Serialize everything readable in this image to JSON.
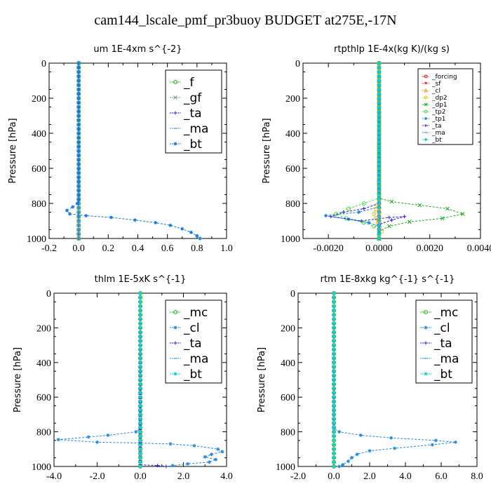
{
  "title": "cam144_lscale_pmf_pr3buoy  BUDGET at275E,-17N",
  "chart_data": [
    {
      "type": "line",
      "title": "um   1E-4xm s^{-2}",
      "ylabel": "Pressure [hPa]",
      "xlim": [
        -0.2,
        1.0
      ],
      "ylim": [
        1000,
        0
      ],
      "xticks": [
        "-0.2",
        "0.0",
        "0.2",
        "0.4",
        "0.6",
        "0.8",
        "1.0"
      ],
      "xtick_values": [
        -0.2,
        0.0,
        0.2,
        0.4,
        0.6,
        0.8,
        1.0
      ],
      "yticks": [
        "0",
        "200",
        "400",
        "600",
        "800",
        "1000"
      ],
      "ytick_values": [
        0,
        200,
        400,
        600,
        800,
        1000
      ],
      "legend_position": "top-right",
      "legend_size": "large",
      "series": [
        {
          "name": "_f",
          "color": "#22c022",
          "marker": "o",
          "values": [
            [
              0,
              0
            ],
            [
              0,
              1000
            ]
          ]
        },
        {
          "name": "_gf",
          "color": "#6aa0a8",
          "marker": "x",
          "values": [
            [
              0,
              0
            ],
            [
              0,
              1000
            ]
          ]
        },
        {
          "name": "_ta",
          "color": "#2222cc",
          "marker": "+",
          "values": [
            [
              0,
              0
            ],
            [
              0,
              1000
            ]
          ]
        },
        {
          "name": "_ma",
          "color": "#3399cc",
          "marker": "-",
          "values": [
            [
              0,
              0
            ],
            [
              0,
              1000
            ]
          ]
        },
        {
          "name": "_bt",
          "color": "#1177dd",
          "marker": "*",
          "values": [
            [
              0,
              0
            ],
            [
              0,
              780
            ],
            [
              -0.01,
              800
            ],
            [
              -0.04,
              820
            ],
            [
              -0.08,
              840
            ],
            [
              -0.06,
              860
            ],
            [
              0.05,
              870
            ],
            [
              0.22,
              880
            ],
            [
              0.38,
              895
            ],
            [
              0.52,
              910
            ],
            [
              0.62,
              925
            ],
            [
              0.7,
              945
            ],
            [
              0.76,
              965
            ],
            [
              0.8,
              985
            ],
            [
              0.82,
              1000
            ]
          ]
        }
      ]
    },
    {
      "type": "line",
      "title": "rtpthlp   1E-4x(kg K)/(kg s)",
      "ylabel": "Pressure [hPa]",
      "xlim": [
        -0.003,
        0.004
      ],
      "ylim": [
        1000,
        0
      ],
      "xticks": [
        "-0.0020",
        "0.0000",
        "0.0020",
        "0.0040"
      ],
      "xtick_values": [
        -0.002,
        0.0,
        0.002,
        0.004
      ],
      "yticks": [
        "0",
        "200",
        "400",
        "600",
        "800",
        "1000"
      ],
      "ytick_values": [
        0,
        200,
        400,
        600,
        800,
        1000
      ],
      "legend_position": "top-right",
      "legend_size": "small",
      "series": [
        {
          "name": "_forcing",
          "color": "#dd2222",
          "marker": "o",
          "values": [
            [
              0,
              0
            ],
            [
              0,
              1000
            ]
          ]
        },
        {
          "name": "_sf",
          "color": "#ee3333",
          "marker": "v",
          "values": [
            [
              0,
              0
            ],
            [
              0,
              1000
            ]
          ]
        },
        {
          "name": "_cl",
          "color": "#e8a020",
          "marker": "^",
          "values": [
            [
              0,
              0
            ],
            [
              0,
              1000
            ]
          ]
        },
        {
          "name": "_dp2",
          "color": "#e8c020",
          "marker": "o",
          "values": [
            [
              0,
              0
            ],
            [
              0,
              780
            ],
            [
              -0.0002,
              860
            ],
            [
              0.0001,
              960
            ],
            [
              0,
              1000
            ]
          ]
        },
        {
          "name": "_dp1",
          "color": "#22aa22",
          "marker": "x",
          "values": [
            [
              0,
              0
            ],
            [
              0,
              770
            ],
            [
              0.0005,
              790
            ],
            [
              0.0016,
              810
            ],
            [
              0.0027,
              830
            ],
            [
              0.0033,
              860
            ],
            [
              0.0025,
              885
            ],
            [
              0.0012,
              905
            ],
            [
              0.0004,
              930
            ],
            [
              0,
              960
            ],
            [
              0,
              1000
            ]
          ]
        },
        {
          "name": "_tp2",
          "color": "#44dd44",
          "marker": "o",
          "values": [
            [
              0,
              0
            ],
            [
              0,
              770
            ],
            [
              -0.0006,
              800
            ],
            [
              -0.0012,
              830
            ],
            [
              -0.0017,
              860
            ],
            [
              -0.0013,
              885
            ],
            [
              -0.0006,
              910
            ],
            [
              -0.0002,
              930
            ],
            [
              0,
              950
            ],
            [
              0,
              1000
            ]
          ]
        },
        {
          "name": "_tp1",
          "color": "#2288dd",
          "marker": "*",
          "values": [
            [
              0,
              0
            ],
            [
              0,
              820
            ],
            [
              -0.0008,
              850
            ],
            [
              -0.0021,
              870
            ],
            [
              -0.0012,
              890
            ],
            [
              -0.0004,
              910
            ],
            [
              0,
              930
            ],
            [
              0,
              1000
            ]
          ]
        },
        {
          "name": "_ta",
          "color": "#2222cc",
          "marker": "+",
          "values": [
            [
              0,
              0
            ],
            [
              0,
              800
            ],
            [
              -0.0006,
              830
            ],
            [
              -0.0014,
              850
            ],
            [
              -0.0019,
              875
            ],
            [
              -0.0007,
              900
            ],
            [
              0.0004,
              880
            ],
            [
              0.001,
              875
            ],
            [
              0.0005,
              895
            ],
            [
              0,
              920
            ],
            [
              0,
              1000
            ]
          ]
        },
        {
          "name": "_ma",
          "color": "#3399cc",
          "marker": "-",
          "values": [
            [
              0,
              0
            ],
            [
              0,
              1000
            ]
          ]
        },
        {
          "name": "_bt",
          "color": "#11cccc",
          "marker": "*",
          "values": [
            [
              0,
              0
            ],
            [
              0,
              1000
            ]
          ]
        }
      ]
    },
    {
      "type": "line",
      "title": "thlm   1E-5xK s^{-1}",
      "ylabel": "Pressure [hPa]",
      "xlim": [
        -4.0,
        4.0
      ],
      "ylim": [
        1000,
        0
      ],
      "xticks": [
        "-4.0",
        "-2.0",
        "0.0",
        "2.0",
        "4.0"
      ],
      "xtick_values": [
        -4.0,
        -2.0,
        0.0,
        2.0,
        4.0
      ],
      "yticks": [
        "0",
        "200",
        "400",
        "600",
        "800",
        "1000"
      ],
      "ytick_values": [
        0,
        200,
        400,
        600,
        800,
        1000
      ],
      "legend_position": "top-right",
      "legend_size": "large",
      "series": [
        {
          "name": "_mc",
          "color": "#22c022",
          "marker": "o",
          "values": [
            [
              0,
              0
            ],
            [
              0,
              1000
            ]
          ]
        },
        {
          "name": "_cl",
          "color": "#2288dd",
          "marker": "*",
          "values": [
            [
              0,
              0
            ],
            [
              0,
              780
            ],
            [
              -0.2,
              800
            ],
            [
              -1.5,
              820
            ],
            [
              -2.4,
              830
            ],
            [
              -3.8,
              845
            ],
            [
              -2.0,
              860
            ],
            [
              0,
              865
            ],
            [
              1.4,
              870
            ],
            [
              2.5,
              880
            ],
            [
              3.6,
              900
            ],
            [
              3.8,
              915
            ],
            [
              3.3,
              930
            ],
            [
              3.0,
              945
            ],
            [
              3.5,
              960
            ],
            [
              3.2,
              975
            ],
            [
              2.2,
              985
            ],
            [
              1.5,
              995
            ]
          ]
        },
        {
          "name": "_ta",
          "color": "#2222cc",
          "marker": "+",
          "values": [
            [
              0,
              0
            ],
            [
              0,
              990
            ],
            [
              0.8,
              995
            ],
            [
              1.2,
              1000
            ]
          ]
        },
        {
          "name": "_ma",
          "color": "#3399cc",
          "marker": "-",
          "values": [
            [
              0,
              0
            ],
            [
              0,
              1000
            ]
          ]
        },
        {
          "name": "_bt",
          "color": "#11cccc",
          "marker": "*",
          "values": [
            [
              0,
              0
            ],
            [
              0,
              1000
            ]
          ]
        }
      ]
    },
    {
      "type": "line",
      "title": "rtm   1E-8xkg kg^{-1} s^{-1}",
      "ylabel": "Pressure [hPa]",
      "xlim": [
        -2.0,
        8.0
      ],
      "ylim": [
        1000,
        0
      ],
      "xticks": [
        "-2.0",
        "0.0",
        "2.0",
        "4.0",
        "6.0",
        "8.0"
      ],
      "xtick_values": [
        -2.0,
        0.0,
        2.0,
        4.0,
        6.0,
        8.0
      ],
      "yticks": [
        "0",
        "200",
        "400",
        "600",
        "800",
        "1000"
      ],
      "ytick_values": [
        0,
        200,
        400,
        600,
        800,
        1000
      ],
      "legend_position": "top-right",
      "legend_size": "large",
      "series": [
        {
          "name": "_mc",
          "color": "#22c022",
          "marker": "o",
          "values": [
            [
              0,
              0
            ],
            [
              0,
              1000
            ]
          ]
        },
        {
          "name": "_cl",
          "color": "#2288dd",
          "marker": "*",
          "values": [
            [
              0,
              0
            ],
            [
              0,
              780
            ],
            [
              0.3,
              800
            ],
            [
              1.5,
              820
            ],
            [
              3.2,
              835
            ],
            [
              5.7,
              850
            ],
            [
              6.8,
              860
            ],
            [
              5.5,
              875
            ],
            [
              3.4,
              895
            ],
            [
              2.0,
              910
            ],
            [
              1.3,
              930
            ],
            [
              1.0,
              950
            ],
            [
              0.8,
              970
            ],
            [
              0.5,
              990
            ],
            [
              0.3,
              1000
            ]
          ]
        },
        {
          "name": "_ta",
          "color": "#2222cc",
          "marker": "+",
          "values": [
            [
              0,
              0
            ],
            [
              0,
              1000
            ]
          ]
        },
        {
          "name": "_ma",
          "color": "#3399cc",
          "marker": "-",
          "values": [
            [
              0,
              0
            ],
            [
              0,
              1000
            ]
          ]
        },
        {
          "name": "_bt",
          "color": "#11cccc",
          "marker": "*",
          "values": [
            [
              0,
              0
            ],
            [
              0,
              1000
            ]
          ]
        }
      ]
    }
  ]
}
